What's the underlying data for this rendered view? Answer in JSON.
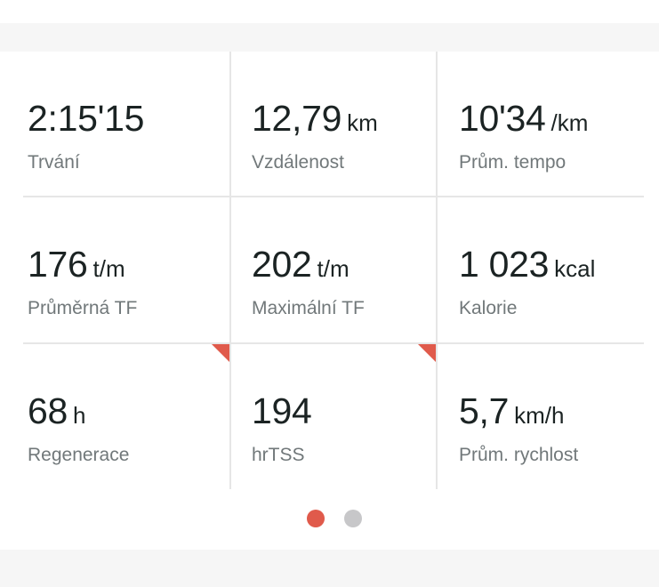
{
  "metrics": [
    {
      "value": "2:15'15",
      "unit": "",
      "label": "Trvání"
    },
    {
      "value": "12,79",
      "unit": "km",
      "label": "Vzdálenost"
    },
    {
      "value": "10'34",
      "unit": "/km",
      "label": "Prům. tempo"
    },
    {
      "value": "176",
      "unit": "t/m",
      "label": "Průměrná TF"
    },
    {
      "value": "202",
      "unit": "t/m",
      "label": "Maximální TF"
    },
    {
      "value": "1 023",
      "unit": "kcal",
      "label": "Kalorie"
    },
    {
      "value": "68",
      "unit": "h",
      "label": "Regenerace",
      "flagged": true
    },
    {
      "value": "194",
      "unit": "",
      "label": "hrTSS",
      "flagged": true
    },
    {
      "value": "5,7",
      "unit": "km/h",
      "label": "Prům. rychlost"
    }
  ],
  "pagination": {
    "pages": 2,
    "current": 1
  },
  "colors": {
    "accent": "#e05a4b",
    "text": "#1b2323",
    "label": "#71787a",
    "divider": "#e6e6e6",
    "dot_inactive": "#c7c7c9"
  }
}
